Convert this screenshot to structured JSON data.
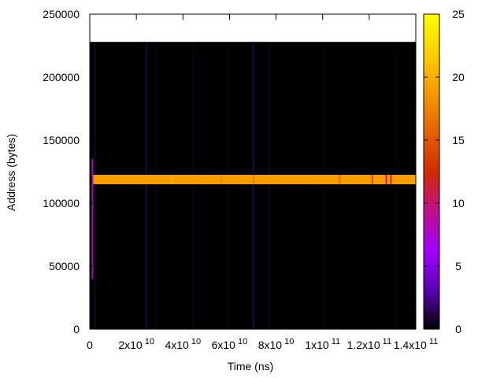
{
  "chart_data": {
    "type": "heatmap",
    "xlabel": "Time (ns)",
    "ylabel": "Address (bytes)",
    "xlim": [
      0,
      140000000000
    ],
    "ylim": [
      0,
      250000
    ],
    "x_ticks": [
      {
        "value": 0,
        "mantissa": "0",
        "exp": ""
      },
      {
        "value": 20000000000,
        "mantissa": "2x10",
        "exp": "10"
      },
      {
        "value": 40000000000,
        "mantissa": "4x10",
        "exp": "10"
      },
      {
        "value": 60000000000,
        "mantissa": "6x10",
        "exp": "10"
      },
      {
        "value": 80000000000,
        "mantissa": "8x10",
        "exp": "10"
      },
      {
        "value": 100000000000,
        "mantissa": "1x10",
        "exp": "11"
      },
      {
        "value": 120000000000,
        "mantissa": "1.2x10",
        "exp": "11"
      },
      {
        "value": 140000000000,
        "mantissa": "1.4x10",
        "exp": "11"
      }
    ],
    "y_ticks": [
      {
        "value": 0,
        "label": "0"
      },
      {
        "value": 50000,
        "label": "50000"
      },
      {
        "value": 100000,
        "label": "100000"
      },
      {
        "value": 150000,
        "label": "150000"
      },
      {
        "value": 200000,
        "label": "200000"
      },
      {
        "value": 250000,
        "label": "250000"
      }
    ],
    "colorbar": {
      "range": [
        0,
        25
      ],
      "palette": "black-purple-red-orange-yellow",
      "stops": [
        "#000000",
        "#5a00b4",
        "#a000ff",
        "#c0108a",
        "#d22a00",
        "#e66200",
        "#f59a00",
        "#fcd000",
        "#ffff00"
      ],
      "ticks": [
        {
          "value": 0,
          "label": "0"
        },
        {
          "value": 5,
          "label": "5"
        },
        {
          "value": 10,
          "label": "10"
        },
        {
          "value": 15,
          "label": "15"
        },
        {
          "value": 20,
          "label": "20"
        },
        {
          "value": 25,
          "label": "25"
        }
      ]
    },
    "heatmap": {
      "x_range": [
        0,
        140000000000
      ],
      "y_range": [
        0,
        228000
      ],
      "background_value": 0,
      "band": {
        "y_range": [
          115000,
          122500
        ],
        "value": 19,
        "x_range": [
          1000000000,
          140000000000
        ]
      },
      "band_variations": [
        {
          "x": 35000000000,
          "value": 20
        },
        {
          "x": 56000000000,
          "value": 18
        },
        {
          "x": 70000000000,
          "value": 17
        },
        {
          "x": 107000000000,
          "value": 16
        },
        {
          "x": 121000000000,
          "value": 14
        },
        {
          "x": 127000000000,
          "value": 10
        },
        {
          "x": 129000000000,
          "value": 12
        }
      ],
      "startup_spike": {
        "x": 500000000,
        "y_range": [
          40000,
          135000
        ],
        "value": 8
      },
      "faint_columns": [
        {
          "x": 2000000000,
          "value": 2
        },
        {
          "x": 24000000000,
          "value": 3
        },
        {
          "x": 28000000000,
          "value": 1
        },
        {
          "x": 44000000000,
          "value": 1
        },
        {
          "x": 59000000000,
          "value": 1
        },
        {
          "x": 70000000000,
          "value": 4
        },
        {
          "x": 77000000000,
          "value": 2
        },
        {
          "x": 100000000000,
          "value": 1
        },
        {
          "x": 132000000000,
          "value": 1
        }
      ]
    }
  }
}
